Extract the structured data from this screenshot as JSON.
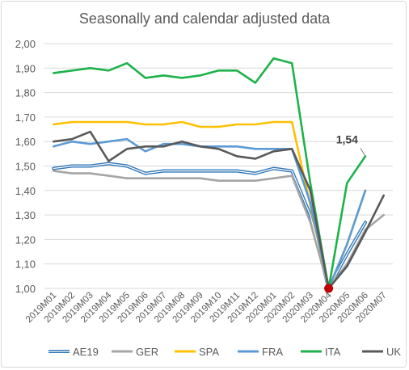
{
  "chart_data": {
    "type": "line",
    "title": "Seasonally and calendar adjusted data",
    "xlabel": "",
    "ylabel": "",
    "ylim": [
      1.0,
      2.0
    ],
    "yticks": [
      "1,00",
      "1,10",
      "1,20",
      "1,30",
      "1,40",
      "1,50",
      "1,60",
      "1,70",
      "1,80",
      "1,90",
      "2,00"
    ],
    "grid": true,
    "legend": "bottom",
    "categories": [
      "2019M01",
      "2019M02",
      "2019M03",
      "2019M04",
      "2019M05",
      "2019M06",
      "2019M07",
      "2019M08",
      "2019M09",
      "2019M10",
      "2019M11",
      "2019M12",
      "2020M01",
      "2020M02",
      "2020M03",
      "2020M04",
      "2020M05",
      "2020M06",
      "2020M07"
    ],
    "annotations": [
      {
        "text": "1,54",
        "series": "ITA",
        "category": "2020M06"
      }
    ],
    "highlight_point": {
      "category": "2020M04",
      "value": 1.0,
      "color": "#c00000"
    },
    "series": [
      {
        "name": "AE19",
        "color": "#2e75b6",
        "style": "double",
        "values": [
          1.49,
          1.5,
          1.5,
          1.51,
          1.5,
          1.47,
          1.48,
          1.48,
          1.48,
          1.48,
          1.48,
          1.47,
          1.49,
          1.48,
          1.3,
          1.0,
          1.14,
          1.27,
          null
        ]
      },
      {
        "name": "GER",
        "color": "#a5a5a5",
        "values": [
          1.48,
          1.47,
          1.47,
          1.46,
          1.45,
          1.45,
          1.45,
          1.45,
          1.45,
          1.44,
          1.44,
          1.44,
          1.45,
          1.46,
          1.27,
          1.0,
          1.1,
          1.24,
          1.3
        ]
      },
      {
        "name": "SPA",
        "color": "#ffc000",
        "values": [
          1.67,
          1.68,
          1.68,
          1.68,
          1.68,
          1.67,
          1.67,
          1.68,
          1.66,
          1.66,
          1.67,
          1.67,
          1.68,
          1.68,
          1.34,
          1.0,
          1.18,
          1.4,
          null
        ]
      },
      {
        "name": "FRA",
        "color": "#5b9bd5",
        "values": [
          1.58,
          1.6,
          1.59,
          1.6,
          1.61,
          1.56,
          1.59,
          1.59,
          1.58,
          1.58,
          1.58,
          1.57,
          1.57,
          1.57,
          1.35,
          1.0,
          1.18,
          1.4,
          null
        ]
      },
      {
        "name": "ITA",
        "color": "#1db24a",
        "values": [
          1.88,
          1.89,
          1.9,
          1.89,
          1.92,
          1.86,
          1.87,
          1.86,
          1.87,
          1.89,
          1.89,
          1.84,
          1.94,
          1.92,
          1.43,
          1.0,
          1.43,
          1.54,
          null
        ]
      },
      {
        "name": "UK",
        "color": "#595959",
        "values": [
          1.6,
          1.61,
          1.64,
          1.52,
          1.57,
          1.58,
          1.58,
          1.6,
          1.58,
          1.57,
          1.54,
          1.53,
          1.56,
          1.57,
          1.4,
          1.0,
          1.09,
          1.23,
          1.38
        ]
      }
    ]
  }
}
